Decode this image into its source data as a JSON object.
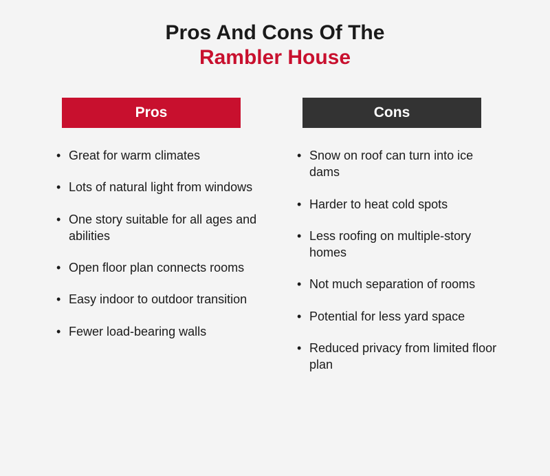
{
  "title": {
    "line1": "Pros And Cons Of The",
    "line2": "Rambler House",
    "line1_color": "#1a1a1a",
    "line2_color": "#c8102e",
    "fontsize": 30,
    "fontweight": 700
  },
  "background_color": "#f4f4f4",
  "columns": {
    "pros": {
      "header_label": "Pros",
      "header_bg": "#c8102e",
      "header_text_color": "#ffffff",
      "items": [
        "Great for warm climates",
        "Lots of natural light from windows",
        "One story suitable for all ages and abilities",
        "Open floor plan connects rooms",
        "Easy indoor to outdoor transition",
        "Fewer load-bearing walls"
      ]
    },
    "cons": {
      "header_label": "Cons",
      "header_bg": "#333333",
      "header_text_color": "#ffffff",
      "items": [
        "Snow on roof can turn into ice dams",
        "Harder to heat cold spots",
        "Less roofing on multiple-story homes",
        "Not much separation of rooms",
        "Potential for less yard space",
        "Reduced privacy from limited floor plan"
      ]
    }
  },
  "item_text_color": "#1a1a1a",
  "item_fontsize": 18,
  "header_fontsize": 21
}
